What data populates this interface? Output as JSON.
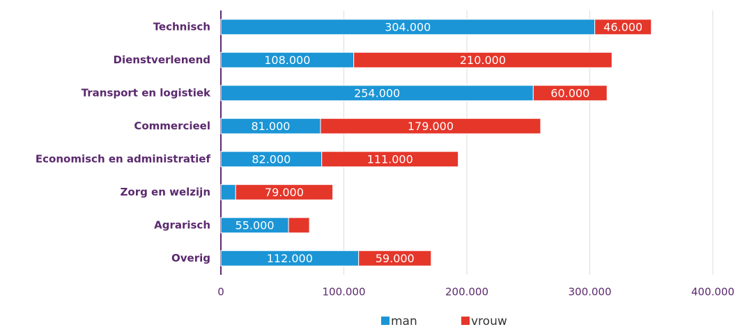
{
  "chart_data": {
    "type": "stacked_barh",
    "categories": [
      "Technisch",
      "Dienstverlenend",
      "Transport en logistiek",
      "Commercieel",
      "Economisch en administratief",
      "Zorg en welzijn",
      "Agrarisch",
      "Overig"
    ],
    "series": [
      {
        "name": "man",
        "color": "#1b95d5",
        "values": [
          304000,
          108000,
          254000,
          81000,
          82000,
          12000,
          55000,
          112000
        ],
        "value_labels": [
          "304.000",
          "108.000",
          "254.000",
          "81.000",
          "82.000",
          null,
          "55.000",
          "112.000"
        ]
      },
      {
        "name": "vrouw",
        "color": "#e5362a",
        "values": [
          46000,
          210000,
          60000,
          179000,
          111000,
          79000,
          17000,
          59000
        ],
        "value_labels": [
          "46.000",
          "210.000",
          "60.000",
          "179.000",
          "111.000",
          "79.000",
          null,
          "59.000"
        ]
      }
    ],
    "xlim": [
      0,
      400000
    ],
    "xticks": [
      0,
      {
        "value": 100000,
        "label": "100.000"
      },
      {
        "value": 200000,
        "label": "200.000"
      },
      {
        "value": 300000,
        "label": "300.000"
      },
      {
        "value": 400000,
        "label": "400.000"
      }
    ],
    "grid": true,
    "legend": "bottom"
  }
}
